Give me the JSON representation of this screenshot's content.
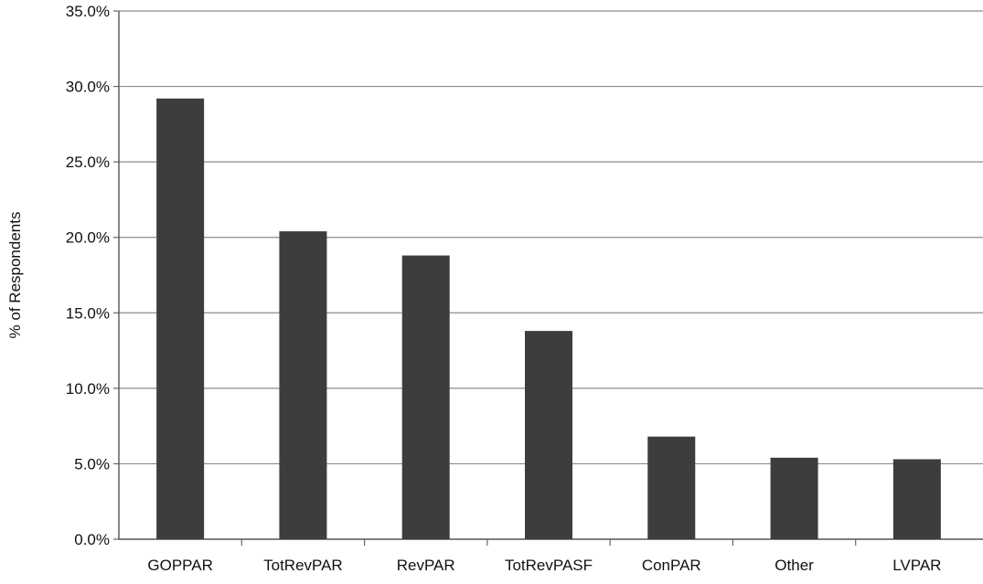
{
  "chart_data": {
    "type": "bar",
    "title": "",
    "xlabel": "",
    "ylabel": "% of Respondents",
    "categories": [
      "GOPPAR",
      "TotRevPAR",
      "RevPAR",
      "TotRevPASF",
      "ConPAR",
      "Other",
      "LVPAR"
    ],
    "values": [
      29.2,
      20.4,
      18.8,
      13.8,
      6.8,
      5.4,
      5.3
    ],
    "ylim": [
      0,
      35
    ],
    "yticks": [
      0,
      5,
      10,
      15,
      20,
      25,
      30,
      35
    ],
    "ytick_labels": [
      "0.0%",
      "5.0%",
      "10.0%",
      "15.0%",
      "20.0%",
      "25.0%",
      "30.0%",
      "35.0%"
    ],
    "grid": "horizontal",
    "legend": "none",
    "bar_color": "#3d3d3d",
    "grid_color": "#8c8c8c"
  }
}
